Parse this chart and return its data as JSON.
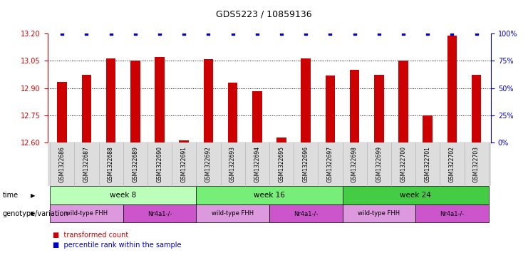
{
  "title": "GDS5223 / 10859136",
  "samples": [
    "GSM1322686",
    "GSM1322687",
    "GSM1322688",
    "GSM1322689",
    "GSM1322690",
    "GSM1322691",
    "GSM1322692",
    "GSM1322693",
    "GSM1322694",
    "GSM1322695",
    "GSM1322696",
    "GSM1322697",
    "GSM1322698",
    "GSM1322699",
    "GSM1322700",
    "GSM1322701",
    "GSM1322702",
    "GSM1322703"
  ],
  "transformed_counts": [
    12.935,
    12.975,
    13.065,
    13.05,
    13.07,
    12.615,
    13.06,
    12.93,
    12.885,
    12.63,
    13.065,
    12.97,
    13.0,
    12.975,
    13.05,
    12.75,
    13.19,
    12.975
  ],
  "percentile_ranks": [
    100,
    100,
    100,
    100,
    100,
    100,
    100,
    100,
    100,
    100,
    100,
    100,
    100,
    100,
    100,
    100,
    100,
    100
  ],
  "ylim_left": [
    12.6,
    13.2
  ],
  "ylim_right": [
    0,
    100
  ],
  "yticks_left": [
    12.6,
    12.75,
    12.9,
    13.05,
    13.2
  ],
  "yticks_right": [
    0,
    25,
    50,
    75,
    100
  ],
  "bar_color": "#cc0000",
  "percentile_color": "#0000cc",
  "time_groups": [
    {
      "label": "week 8",
      "start": 0,
      "end": 6,
      "color": "#bbffbb"
    },
    {
      "label": "week 16",
      "start": 6,
      "end": 12,
      "color": "#77ee77"
    },
    {
      "label": "week 24",
      "start": 12,
      "end": 18,
      "color": "#44cc44"
    }
  ],
  "genotype_groups": [
    {
      "label": "wild-type FHH",
      "start": 0,
      "end": 3,
      "color": "#dd99dd"
    },
    {
      "label": "Nr4a1-/-",
      "start": 3,
      "end": 6,
      "color": "#cc55cc"
    },
    {
      "label": "wild-type FHH",
      "start": 6,
      "end": 9,
      "color": "#dd99dd"
    },
    {
      "label": "Nr4a1-/-",
      "start": 9,
      "end": 12,
      "color": "#cc55cc"
    },
    {
      "label": "wild-type FHH",
      "start": 12,
      "end": 15,
      "color": "#dd99dd"
    },
    {
      "label": "Nr4a1-/-",
      "start": 15,
      "end": 18,
      "color": "#cc55cc"
    }
  ],
  "legend_items": [
    {
      "label": "transformed count",
      "color": "#cc0000"
    },
    {
      "label": "percentile rank within the sample",
      "color": "#0000cc"
    }
  ],
  "time_label": "time",
  "genotype_label": "genotype/variation",
  "background_color": "#ffffff",
  "axis_color_left": "#cc0000",
  "axis_color_right": "#0000cc"
}
